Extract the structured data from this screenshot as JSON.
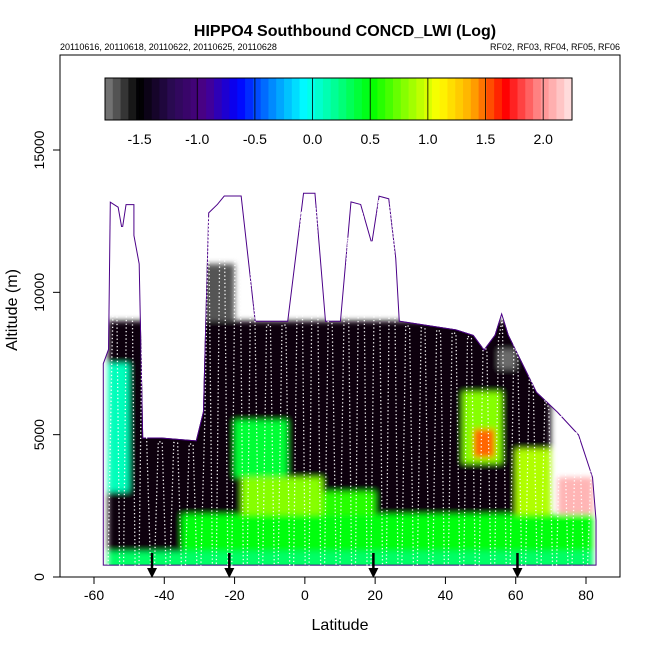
{
  "chart_data": {
    "type": "heatmap",
    "title": "HIPPO4 Southbound CONCD_LWI (Log)",
    "subtitle_left": "20110616, 20110618, 20110622, 20110625, 20110628",
    "subtitle_right": "RF02, RF03, RF04, RF05, RF06",
    "xlabel": "Latitude",
    "ylabel": "Altitude (m)",
    "xlim": [
      -70,
      90
    ],
    "ylim": [
      0,
      18000
    ],
    "x_ticks": [
      -60,
      -40,
      -20,
      0,
      20,
      40,
      60,
      80
    ],
    "y_ticks": [
      0,
      5000,
      10000,
      15000
    ],
    "colorbar": {
      "range": [
        -1.8,
        2.25
      ],
      "ticks": [
        -1.5,
        -1.0,
        -0.5,
        0.0,
        0.5,
        1.0,
        1.5,
        2.0
      ],
      "tick_labels": [
        "-1.5",
        "-1.0",
        "-0.5",
        "0.0",
        "0.5",
        "1.0",
        "1.5",
        "2.0"
      ],
      "stops": [
        "#808080",
        "#000000",
        "#2a0a52",
        "#4b0088",
        "#0000ff",
        "#0088ff",
        "#00ffff",
        "#00ff88",
        "#00ff00",
        "#88ff00",
        "#ffff00",
        "#ffaa00",
        "#ff0000",
        "#ff8888",
        "#ffe6e6"
      ]
    },
    "data_envelope": [
      [
        -57.5,
        500
      ],
      [
        -57.5,
        7500
      ],
      [
        -56,
        8000
      ],
      [
        -55.5,
        13200
      ],
      [
        -53,
        13000
      ],
      [
        -52,
        12300
      ],
      [
        -51,
        13100
      ],
      [
        -48.5,
        13100
      ],
      [
        -48.5,
        12000
      ],
      [
        -47,
        11000
      ],
      [
        -46,
        4900
      ],
      [
        -41,
        4900
      ],
      [
        -31,
        4800
      ],
      [
        -29,
        5800
      ],
      [
        -27.5,
        12800
      ],
      [
        -25,
        13100
      ],
      [
        -23,
        13400
      ],
      [
        -18,
        13400
      ],
      [
        -14,
        9000
      ],
      [
        -5,
        9000
      ],
      [
        -0.5,
        13500
      ],
      [
        3,
        13500
      ],
      [
        6,
        9000
      ],
      [
        10,
        9000
      ],
      [
        13,
        13200
      ],
      [
        16,
        13100
      ],
      [
        19,
        11800
      ],
      [
        21,
        13400
      ],
      [
        24,
        13300
      ],
      [
        26,
        11200
      ],
      [
        27,
        9000
      ],
      [
        43,
        8700
      ],
      [
        48,
        8500
      ],
      [
        51,
        8000
      ],
      [
        54,
        8500
      ],
      [
        56,
        9300
      ],
      [
        58,
        8500
      ],
      [
        62,
        7500
      ],
      [
        66,
        6500
      ],
      [
        72,
        5800
      ],
      [
        78,
        5000
      ],
      [
        82,
        3500
      ],
      [
        83,
        2000
      ],
      [
        83,
        400
      ],
      [
        -57.5,
        400
      ]
    ],
    "value_regions": [
      {
        "x": [
          -56,
          70
        ],
        "y": [
          0,
          9000
        ],
        "value": -1.45
      },
      {
        "x": [
          -20,
          -5
        ],
        "y": [
          3500,
          5500
        ],
        "value": 0.4
      },
      {
        "x": [
          -18,
          5
        ],
        "y": [
          1800,
          3500
        ],
        "value": 0.8
      },
      {
        "x": [
          5,
          20
        ],
        "y": [
          1500,
          3000
        ],
        "value": 0.6
      },
      {
        "x": [
          45,
          56
        ],
        "y": [
          4000,
          6500
        ],
        "value": 0.8
      },
      {
        "x": [
          48,
          54
        ],
        "y": [
          4200,
          5200
        ],
        "value": 1.5
      },
      {
        "x": [
          60,
          70
        ],
        "y": [
          1500,
          4500
        ],
        "value": 0.9
      },
      {
        "x": [
          72,
          82
        ],
        "y": [
          2000,
          3500
        ],
        "value": 2.1
      },
      {
        "x": [
          -56,
          -50
        ],
        "y": [
          3000,
          7500
        ],
        "value": 0.1
      },
      {
        "x": [
          -56,
          82
        ],
        "y": [
          0,
          900
        ],
        "value": 0.3
      },
      {
        "x": [
          -35,
          82
        ],
        "y": [
          900,
          2200
        ],
        "value": 0.5
      },
      {
        "x": [
          -30,
          -20
        ],
        "y": [
          9000,
          11000
        ],
        "value": -1.7
      },
      {
        "x": [
          55,
          60
        ],
        "y": [
          7300,
          8000
        ],
        "value": -1.75
      }
    ],
    "arrows_at_latitude": [
      -43.5,
      -21.5,
      19.5,
      60.5
    ]
  }
}
